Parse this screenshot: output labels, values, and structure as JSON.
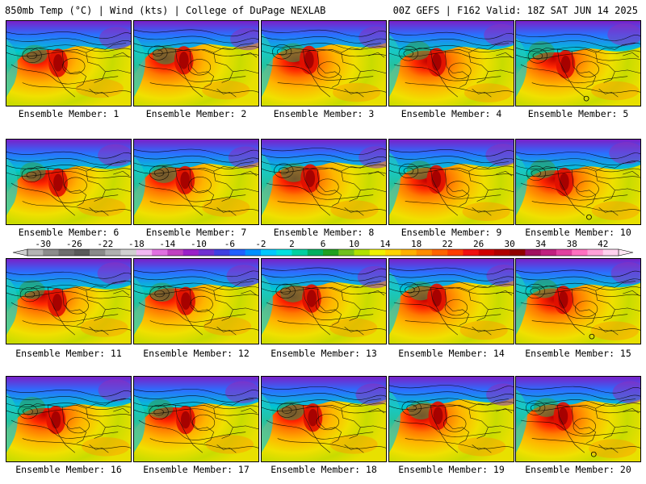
{
  "header": {
    "left_title": "850mb Temp (°C) | Wind (kts) | College of DuPage NEXLAB",
    "right_title": "00Z GEFS | F162 Valid: 18Z SAT JUN 14 2025"
  },
  "members": [
    {
      "label": "Ensemble Member: 1"
    },
    {
      "label": "Ensemble Member: 2"
    },
    {
      "label": "Ensemble Member: 3"
    },
    {
      "label": "Ensemble Member: 4"
    },
    {
      "label": "Ensemble Member: 5"
    },
    {
      "label": "Ensemble Member: 6"
    },
    {
      "label": "Ensemble Member: 7"
    },
    {
      "label": "Ensemble Member: 8"
    },
    {
      "label": "Ensemble Member: 9"
    },
    {
      "label": "Ensemble Member: 10"
    },
    {
      "label": "Ensemble Member: 11"
    },
    {
      "label": "Ensemble Member: 12"
    },
    {
      "label": "Ensemble Member: 13"
    },
    {
      "label": "Ensemble Member: 14"
    },
    {
      "label": "Ensemble Member: 15"
    },
    {
      "label": "Ensemble Member: 16"
    },
    {
      "label": "Ensemble Member: 17"
    },
    {
      "label": "Ensemble Member: 18"
    },
    {
      "label": "Ensemble Member: 19"
    },
    {
      "label": "Ensemble Member: 20"
    }
  ],
  "colorbar": {
    "tick_labels": [
      "-30",
      "-26",
      "-22",
      "-18",
      "-14",
      "-10",
      "-6",
      "-2",
      "2",
      "6",
      "10",
      "14",
      "18",
      "22",
      "26",
      "30",
      "34",
      "38",
      "42"
    ],
    "colors": [
      "#b4b4b4",
      "#8c8c8c",
      "#6e6e6e",
      "#5a5a5a",
      "#8a8a8a",
      "#b0b0b0",
      "#d0d0d0",
      "#f2b8f2",
      "#e070e0",
      "#c040c0",
      "#9a20c8",
      "#7030d0",
      "#4040e0",
      "#2060ff",
      "#0090ff",
      "#00c8ff",
      "#00e0e0",
      "#00d0a0",
      "#00b060",
      "#20a020",
      "#70c020",
      "#b0e000",
      "#f0f000",
      "#ffd400",
      "#ffb000",
      "#ff8c00",
      "#ff6400",
      "#ff3c00",
      "#f01010",
      "#d00000",
      "#b00000",
      "#900000",
      "#a01060",
      "#c02080",
      "#e040a0",
      "#ff70c0",
      "#ffa0d8",
      "#ffd0ee"
    ]
  }
}
